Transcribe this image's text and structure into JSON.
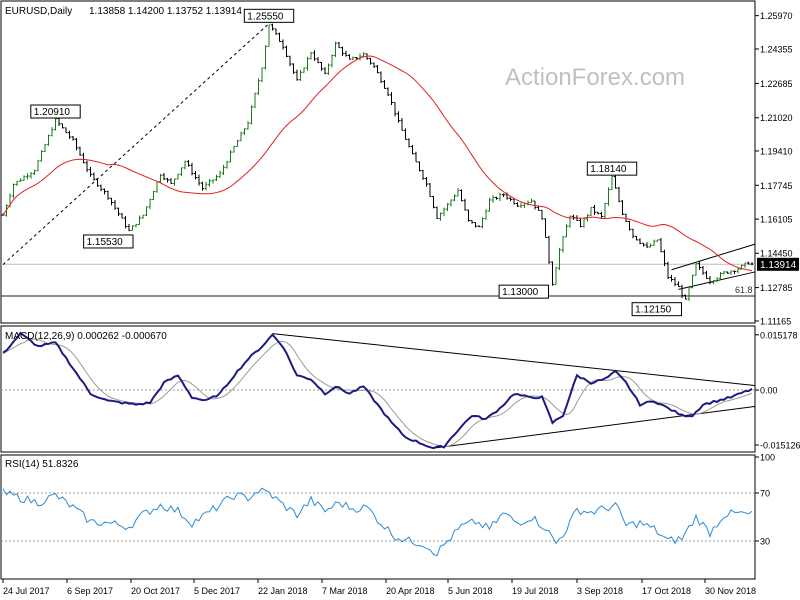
{
  "chart_data": {
    "type": "line",
    "source": "ActionForex.com",
    "instrument": "EURUSD,Daily",
    "ohlc_header": "1.13858 1.14200 1.13752 1.13914",
    "current_price": 1.13914,
    "current_price_label": "1.13914",
    "fib_label": "61.8",
    "fib_level": 1.1238,
    "price_ylim": [
      1.11165,
      1.26535
    ],
    "price_axis_ticks": [
      "1.25970",
      "1.24355",
      "1.22685",
      "1.21020",
      "1.19410",
      "1.17745",
      "1.16105",
      "1.14450",
      "1.12785",
      "1.11165"
    ],
    "date_axis_ticks": [
      "24 Jul 2017",
      "6 Sep 2017",
      "20 Oct 2017",
      "5 Dec 2017",
      "22 Jan 2018",
      "7 Mar 2018",
      "20 Apr 2018",
      "5 Jun 2018",
      "19 Jul 2018",
      "3 Sep 2018",
      "17 Oct 2018",
      "30 Nov 2018"
    ],
    "price_annotations": [
      {
        "label": "1.20910",
        "bar": 15,
        "price": 1.2091
      },
      {
        "label": "1.15530",
        "bar": 36,
        "price": 1.1553
      },
      {
        "label": "1.25550",
        "bar": 76,
        "price": 1.2555
      },
      {
        "label": "1.13000",
        "bar": 157,
        "price": 1.13
      },
      {
        "label": "1.18140",
        "bar": 174,
        "price": 1.1814
      },
      {
        "label": "1.12150",
        "bar": 195,
        "price": 1.1215
      }
    ],
    "close_series": {
      "start_price": 1.163,
      "key_points": [
        [
          0,
          1.163
        ],
        [
          3,
          1.178
        ],
        [
          9,
          1.185
        ],
        [
          15,
          1.2091
        ],
        [
          20,
          1.199
        ],
        [
          25,
          1.182
        ],
        [
          30,
          1.172
        ],
        [
          36,
          1.1553
        ],
        [
          40,
          1.163
        ],
        [
          45,
          1.183
        ],
        [
          48,
          1.178
        ],
        [
          52,
          1.189
        ],
        [
          57,
          1.176
        ],
        [
          62,
          1.183
        ],
        [
          66,
          1.196
        ],
        [
          70,
          1.208
        ],
        [
          74,
          1.235
        ],
        [
          76,
          1.2555
        ],
        [
          80,
          1.245
        ],
        [
          84,
          1.228
        ],
        [
          88,
          1.242
        ],
        [
          92,
          1.231
        ],
        [
          95,
          1.246
        ],
        [
          99,
          1.238
        ],
        [
          103,
          1.241
        ],
        [
          106,
          1.235
        ],
        [
          110,
          1.222
        ],
        [
          113,
          1.208
        ],
        [
          117,
          1.192
        ],
        [
          121,
          1.178
        ],
        [
          124,
          1.162
        ],
        [
          127,
          1.168
        ],
        [
          130,
          1.175
        ],
        [
          133,
          1.16
        ],
        [
          136,
          1.157
        ],
        [
          139,
          1.17
        ],
        [
          143,
          1.173
        ],
        [
          147,
          1.168
        ],
        [
          151,
          1.17
        ],
        [
          154,
          1.162
        ],
        [
          157,
          1.13
        ],
        [
          159,
          1.146
        ],
        [
          162,
          1.163
        ],
        [
          165,
          1.158
        ],
        [
          168,
          1.166
        ],
        [
          171,
          1.162
        ],
        [
          174,
          1.1814
        ],
        [
          177,
          1.164
        ],
        [
          180,
          1.153
        ],
        [
          184,
          1.147
        ],
        [
          187,
          1.151
        ],
        [
          190,
          1.133
        ],
        [
          193,
          1.128
        ],
        [
          195,
          1.1215
        ],
        [
          198,
          1.139
        ],
        [
          202,
          1.131
        ],
        [
          206,
          1.135
        ],
        [
          210,
          1.137
        ],
        [
          213,
          1.14
        ],
        [
          214,
          1.13914
        ]
      ],
      "note": "Daily EUR/USD closes digitized from chart, 215 bars, 24 Jul 2017 to early Dec 2018"
    },
    "moving_average_color": "#e02020",
    "price_line_color": "#1a7a1a",
    "price_line_color_alt": "#000000",
    "triangle_lines": [
      {
        "from": [
          193,
          1.127
        ],
        "to": [
          215,
          1.1355
        ]
      },
      {
        "from": [
          191,
          1.1365
        ],
        "to": [
          215,
          1.149
        ]
      }
    ],
    "trendline_dashed": {
      "from": [
        0,
        1.139
      ],
      "to": [
        80,
        1.262
      ]
    },
    "macd": {
      "label": "MACD(12,26,9) 0.000262 -0.000670",
      "macd_value": 0.000262,
      "signal_value": -0.00067,
      "ylim": [
        -0.0165,
        0.0165
      ],
      "ticks": [
        "0.015178",
        "0.00",
        "-0.015126"
      ],
      "key_points": [
        [
          0,
          0.01
        ],
        [
          5,
          0.0155
        ],
        [
          10,
          0.012
        ],
        [
          15,
          0.013
        ],
        [
          20,
          0.006
        ],
        [
          25,
          -0.001
        ],
        [
          30,
          -0.003
        ],
        [
          34,
          -0.0035
        ],
        [
          38,
          -0.004
        ],
        [
          42,
          -0.0035
        ],
        [
          46,
          0.002
        ],
        [
          50,
          0.004
        ],
        [
          54,
          -0.002
        ],
        [
          58,
          -0.003
        ],
        [
          62,
          -0.001
        ],
        [
          66,
          0.004
        ],
        [
          70,
          0.0085
        ],
        [
          74,
          0.012
        ],
        [
          77,
          0.0152
        ],
        [
          80,
          0.012
        ],
        [
          84,
          0.004
        ],
        [
          88,
          0.003
        ],
        [
          92,
          -0.001
        ],
        [
          95,
          0.001
        ],
        [
          99,
          -0.001
        ],
        [
          103,
          0.001
        ],
        [
          107,
          -0.004
        ],
        [
          111,
          -0.009
        ],
        [
          115,
          -0.013
        ],
        [
          119,
          -0.0145
        ],
        [
          123,
          -0.016
        ],
        [
          126,
          -0.0155
        ],
        [
          130,
          -0.011
        ],
        [
          134,
          -0.007
        ],
        [
          138,
          -0.008
        ],
        [
          142,
          -0.005
        ],
        [
          146,
          -0.001
        ],
        [
          150,
          -0.002
        ],
        [
          154,
          -0.002
        ],
        [
          157,
          -0.009
        ],
        [
          160,
          -0.007
        ],
        [
          164,
          0.004
        ],
        [
          168,
          0.002
        ],
        [
          172,
          0.003
        ],
        [
          175,
          0.005
        ],
        [
          178,
          0.002
        ],
        [
          182,
          -0.004
        ],
        [
          186,
          -0.003
        ],
        [
          190,
          -0.005
        ],
        [
          194,
          -0.007
        ],
        [
          197,
          -0.007
        ],
        [
          200,
          -0.004
        ],
        [
          204,
          -0.003
        ],
        [
          208,
          -0.002
        ],
        [
          212,
          -0.0005
        ],
        [
          214,
          0.000262
        ]
      ],
      "lines": [
        {
          "from": [
            77,
            0.0155
          ],
          "to": [
            215,
            0.0012
          ]
        },
        {
          "from": [
            123,
            -0.016
          ],
          "to": [
            215,
            -0.0045
          ]
        }
      ]
    },
    "rsi": {
      "label": "RSI(14) 51.8326",
      "value": 51.8326,
      "ylim": [
        0,
        100
      ],
      "ticks": [
        "100",
        "70",
        "30",
        "0"
      ],
      "levels": [
        70,
        30
      ],
      "key_points": [
        [
          0,
          70
        ],
        [
          5,
          66
        ],
        [
          10,
          62
        ],
        [
          15,
          68
        ],
        [
          20,
          58
        ],
        [
          25,
          46
        ],
        [
          30,
          45
        ],
        [
          36,
          42
        ],
        [
          40,
          52
        ],
        [
          45,
          60
        ],
        [
          50,
          55
        ],
        [
          54,
          45
        ],
        [
          58,
          52
        ],
        [
          62,
          60
        ],
        [
          66,
          68
        ],
        [
          70,
          66
        ],
        [
          73,
          72
        ],
        [
          76,
          70
        ],
        [
          80,
          60
        ],
        [
          84,
          52
        ],
        [
          88,
          64
        ],
        [
          92,
          55
        ],
        [
          96,
          62
        ],
        [
          100,
          57
        ],
        [
          104,
          58
        ],
        [
          108,
          45
        ],
        [
          112,
          34
        ],
        [
          116,
          30
        ],
        [
          120,
          28
        ],
        [
          124,
          20
        ],
        [
          127,
          30
        ],
        [
          131,
          42
        ],
        [
          135,
          46
        ],
        [
          139,
          40
        ],
        [
          143,
          53
        ],
        [
          147,
          45
        ],
        [
          151,
          50
        ],
        [
          155,
          41
        ],
        [
          158,
          28
        ],
        [
          161,
          40
        ],
        [
          164,
          56
        ],
        [
          168,
          54
        ],
        [
          172,
          57
        ],
        [
          175,
          60
        ],
        [
          178,
          43
        ],
        [
          182,
          45
        ],
        [
          186,
          40
        ],
        [
          190,
          30
        ],
        [
          194,
          32
        ],
        [
          198,
          50
        ],
        [
          202,
          37
        ],
        [
          206,
          52
        ],
        [
          210,
          53
        ],
        [
          214,
          51.8326
        ]
      ]
    }
  }
}
